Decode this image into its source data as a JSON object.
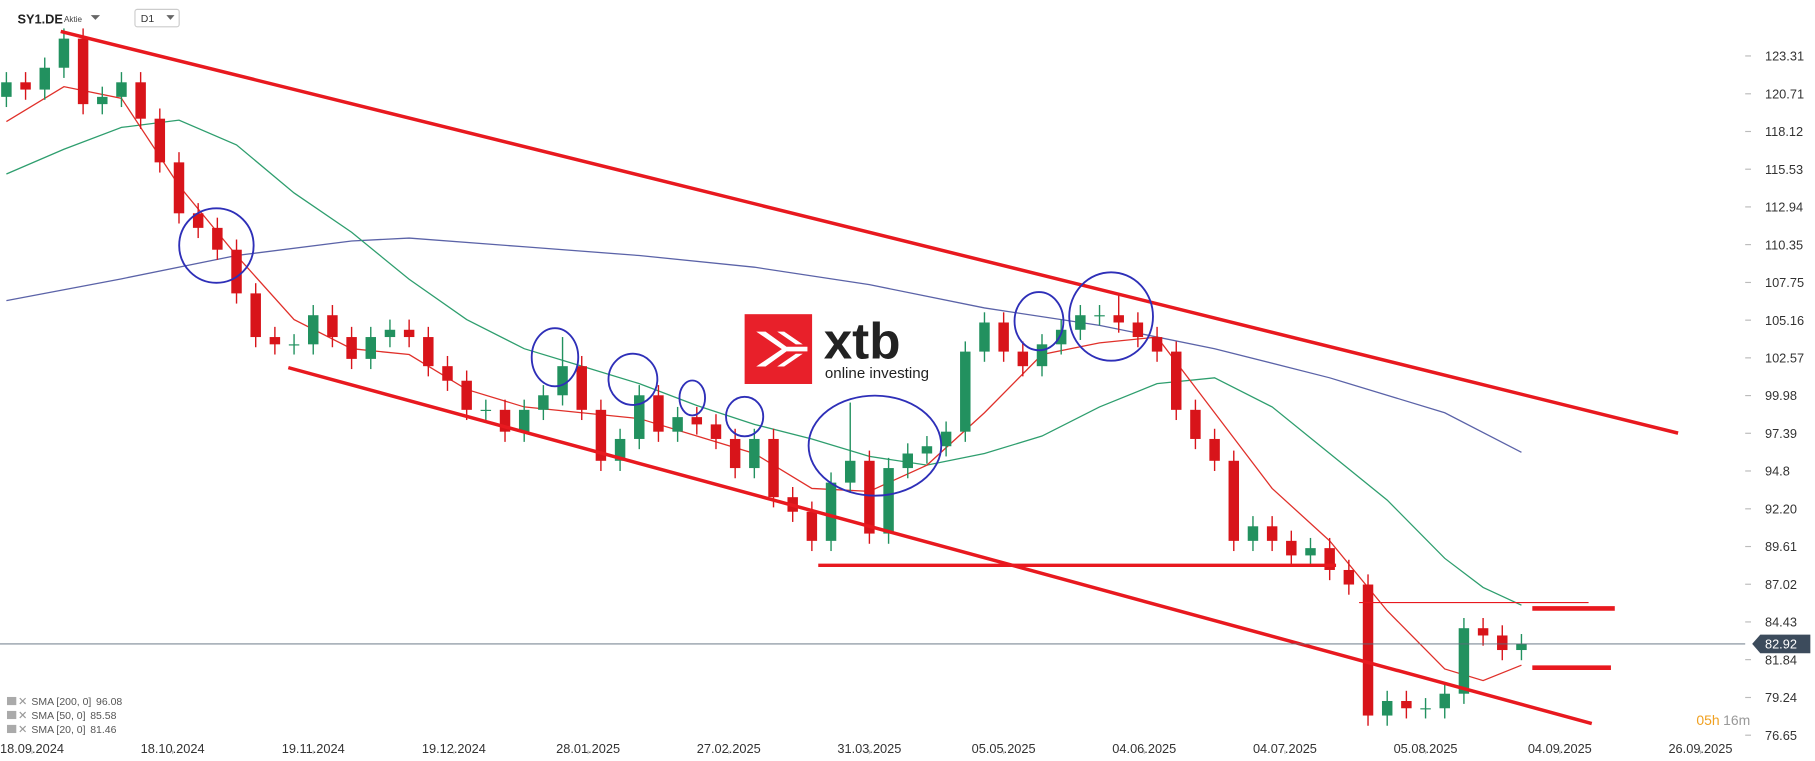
{
  "chart_data": {
    "type": "candlestick",
    "symbol": "SY1.DE",
    "instrument": "Aktie",
    "interval": "D1",
    "up_color": "#22915f",
    "down_color": "#d8141a",
    "xlim": [
      -1,
      272
    ],
    "ylim": [
      75.6,
      127.15
    ],
    "yticks": [
      76.65,
      79.24,
      81.84,
      84.43,
      87.02,
      89.61,
      {
        "value": 92.2,
        "label": "92.20"
      },
      94.8,
      97.39,
      99.98,
      102.57,
      105.16,
      107.75,
      110.35,
      112.94,
      115.53,
      118.12,
      120.71,
      123.31
    ],
    "xticks": [
      {
        "value": 4,
        "label": "18.09.2024"
      },
      {
        "value": 26,
        "label": "18.10.2024"
      },
      {
        "value": 48,
        "label": "19.11.2024"
      },
      {
        "value": 70,
        "label": "19.12.2024"
      },
      {
        "value": 91,
        "label": "28.01.2025"
      },
      {
        "value": 113,
        "label": "27.02.2025"
      },
      {
        "value": 135,
        "label": "31.03.2025"
      },
      {
        "value": 156,
        "label": "05.05.2025"
      },
      {
        "value": 178,
        "label": "04.06.2025"
      },
      {
        "value": 200,
        "label": "04.07.2025"
      },
      {
        "value": 222,
        "label": "05.08.2025"
      },
      {
        "value": 243,
        "label": "04.09.2025"
      },
      {
        "value": 265,
        "label": "26.09.2025"
      }
    ],
    "x": [
      0,
      3,
      6,
      9,
      12,
      15,
      18,
      21,
      24,
      27,
      30,
      33,
      36,
      39,
      42,
      45,
      48,
      51,
      54,
      57,
      60,
      63,
      66,
      69,
      72,
      75,
      78,
      81,
      84,
      87,
      90,
      93,
      96,
      99,
      102,
      105,
      108,
      111,
      114,
      117,
      120,
      123,
      126,
      129,
      132,
      135,
      138,
      141,
      144,
      147,
      150,
      153,
      156,
      159,
      162,
      165,
      168,
      171,
      174,
      177,
      180,
      183,
      186,
      189,
      192,
      195,
      198,
      201,
      204,
      207,
      210,
      213,
      216,
      219,
      222,
      225,
      228,
      231,
      234,
      237
    ],
    "open": [
      120.5,
      121.5,
      121,
      122.5,
      124.5,
      120,
      120.5,
      121.5,
      119,
      116,
      112.5,
      111.5,
      110,
      107,
      104,
      103.5,
      103.5,
      105.5,
      104,
      102.5,
      104,
      104.5,
      104,
      102,
      101,
      99,
      99,
      97.5,
      99,
      100,
      102,
      99,
      95.5,
      97,
      100,
      97.5,
      98.5,
      98,
      97,
      95,
      97,
      93,
      92,
      90,
      94,
      95.5,
      90.5,
      95,
      96,
      96.5,
      97.5,
      103,
      105,
      103,
      102,
      103.5,
      104.5,
      105.5,
      105.5,
      105,
      104,
      103,
      99,
      97,
      95.5,
      90,
      91,
      90,
      89,
      89.5,
      88,
      87,
      78,
      79,
      78.5,
      78.5,
      79.5,
      84,
      83.5,
      82.5
    ],
    "high": [
      122.2,
      122.2,
      123.2,
      125.2,
      125.2,
      121.2,
      122.2,
      122.2,
      119.7,
      116.7,
      113.2,
      112.2,
      110.7,
      107.7,
      104.7,
      104.2,
      106.2,
      106.2,
      104.7,
      104.7,
      105.2,
      105.2,
      104.7,
      102.7,
      101.7,
      99.7,
      99.7,
      99.7,
      100.7,
      104,
      102.7,
      99.7,
      97.7,
      100.7,
      100.7,
      99.2,
      99.2,
      98.7,
      97.7,
      97.7,
      97.7,
      93.7,
      92.7,
      94.7,
      99.5,
      96.2,
      95.7,
      96.7,
      97.2,
      98.2,
      103.7,
      105.7,
      105.7,
      103.7,
      104.2,
      105.2,
      106.2,
      106.2,
      107,
      105.7,
      104.7,
      103.7,
      99.7,
      97.7,
      96.2,
      91.7,
      91.7,
      90.7,
      90.2,
      90.2,
      88.7,
      87.7,
      79.7,
      79.7,
      79.2,
      80.2,
      84.7,
      84.7,
      84.2,
      83.6
    ],
    "low": [
      119.8,
      120.3,
      120.3,
      121.8,
      119.3,
      119.3,
      119.8,
      118.3,
      115.3,
      111.8,
      110.8,
      109.3,
      106.3,
      103.3,
      102.8,
      102.8,
      102.8,
      103.3,
      101.8,
      101.8,
      103.3,
      103.3,
      101.3,
      100.3,
      98.3,
      98.3,
      96.8,
      96.8,
      98.3,
      99.3,
      98.3,
      94.8,
      94.8,
      96.3,
      96.8,
      96.8,
      97.3,
      96.3,
      94.3,
      94.3,
      92.3,
      91.3,
      89.3,
      89.3,
      93.3,
      89.8,
      89.8,
      94.3,
      95.3,
      95.8,
      96.8,
      102.3,
      102.3,
      101.3,
      101.3,
      102.8,
      103.8,
      104.8,
      104.3,
      103.3,
      102.3,
      98.3,
      96.3,
      94.8,
      89.3,
      89.3,
      89.3,
      88.3,
      88.3,
      87.3,
      86.3,
      77.3,
      77.3,
      77.8,
      77.8,
      77.8,
      78.8,
      82.8,
      81.8,
      81.8
    ],
    "close": [
      121.5,
      121,
      122.5,
      124.5,
      120,
      120.5,
      121.5,
      119,
      116,
      112.5,
      111.5,
      110,
      107,
      104,
      103.5,
      103.5,
      105.5,
      104,
      102.5,
      104,
      104.5,
      104,
      102,
      101,
      99,
      99,
      97.5,
      99,
      100,
      102,
      99,
      95.5,
      97,
      100,
      97.5,
      98.5,
      98,
      97,
      95,
      97,
      93,
      92,
      90,
      94,
      95.5,
      90.5,
      95,
      96,
      96.5,
      97.5,
      103,
      105,
      103,
      102,
      103.5,
      104.5,
      105.5,
      105.5,
      105,
      104,
      103,
      99,
      97,
      95.5,
      90,
      91,
      90,
      89,
      89.5,
      88,
      87,
      78,
      79,
      78.5,
      78.5,
      79.5,
      84,
      83.5,
      82.5,
      82.92
    ],
    "moving_averages": [
      {
        "name": "SMA [200, 0]",
        "color": "#5b63a8",
        "x": [
          0,
          18,
          36,
          54,
          63,
          81,
          99,
          117,
          135,
          153,
          171,
          189,
          207,
          225,
          237
        ],
        "values": [
          106.5,
          108.0,
          109.6,
          110.6,
          110.8,
          110.2,
          109.6,
          108.8,
          107.6,
          106.0,
          104.8,
          103.2,
          101.2,
          98.8,
          96.08
        ]
      },
      {
        "name": "SMA [50, 0]",
        "color": "#2e9e6e",
        "x": [
          0,
          9,
          18,
          27,
          36,
          45,
          54,
          63,
          72,
          81,
          90,
          99,
          108,
          117,
          126,
          135,
          144,
          153,
          162,
          171,
          180,
          189,
          198,
          207,
          216,
          225,
          231,
          237
        ],
        "values": [
          115.2,
          116.9,
          118.4,
          118.9,
          117.2,
          113.9,
          111.2,
          107.97,
          105.2,
          103.2,
          102.0,
          100.8,
          99.3,
          98.0,
          97.0,
          95.8,
          95.2,
          96.0,
          97.2,
          99.2,
          100.8,
          101.2,
          99.2,
          96.0,
          92.8,
          88.8,
          86.8,
          85.58
        ]
      },
      {
        "name": "SMA [20, 0]",
        "color": "#e0302a",
        "x": [
          0,
          9,
          18,
          27,
          36,
          45,
          54,
          63,
          72,
          81,
          90,
          99,
          108,
          117,
          126,
          135,
          144,
          153,
          162,
          171,
          180,
          189,
          198,
          207,
          216,
          225,
          231,
          237
        ],
        "values": [
          118.8,
          121.2,
          120.4,
          114.4,
          109.6,
          105.2,
          103.2,
          102.8,
          100.4,
          99.2,
          98.8,
          98.4,
          97.2,
          96.0,
          93.6,
          93.4,
          95.2,
          98.8,
          102.8,
          103.6,
          104.0,
          98.8,
          93.6,
          90.0,
          85.2,
          81.2,
          80.4,
          81.46
        ]
      }
    ],
    "trendlines": [
      {
        "x": [
          8.5,
          261.5
        ],
        "y": [
          124.99,
          97.4
        ],
        "color": "#e8191f",
        "width": 3
      },
      {
        "x": [
          44.1,
          248
        ],
        "y": [
          101.9,
          77.45
        ],
        "color": "#e8191f",
        "width": 3
      },
      {
        "x": [
          127,
          208
        ],
        "y": [
          88.32,
          88.32
        ],
        "color": "#e8191f",
        "width": 3
      },
      {
        "x": [
          211.6,
          247.5
        ],
        "y": [
          85.76,
          85.76
        ],
        "color": "#e8191f",
        "width": 1
      },
      {
        "x": [
          238.7,
          251.6
        ],
        "y": [
          85.36,
          85.36
        ],
        "color": "#e8191f",
        "width": 4
      },
      {
        "x": [
          238.7,
          251
        ],
        "y": [
          81.29,
          81.29
        ],
        "color": "#e8191f",
        "width": 4
      }
    ],
    "current_price": 82.92,
    "countdown": {
      "hours": "05h",
      "minutes": "16m"
    }
  },
  "logo": {
    "brand": "xtb",
    "tagline": "online investing"
  }
}
